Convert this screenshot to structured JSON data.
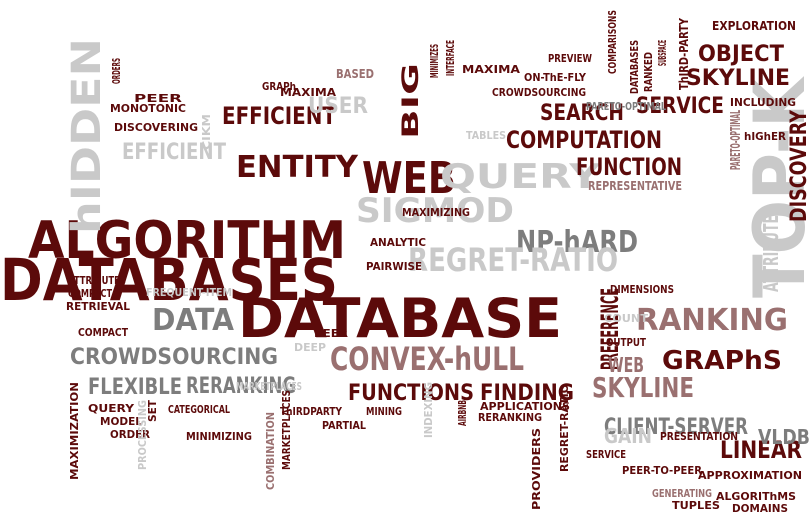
{
  "palette": {
    "maroon": "#5c0a0a",
    "gray": "#7d7d7d",
    "light": "#c9c9c9",
    "rose": "#9a7070"
  },
  "words": [
    {
      "text": "DATABASES",
      "color": "maroon"
    },
    {
      "text": "DATABASE",
      "color": "maroon"
    },
    {
      "text": "ALGORITHM",
      "color": "maroon"
    },
    {
      "text": "TOP-K",
      "color": "light"
    },
    {
      "text": "WEB",
      "color": "maroon"
    },
    {
      "text": "hIDDEN",
      "color": "light"
    },
    {
      "text": "ENTITY",
      "color": "maroon"
    },
    {
      "text": "QUERY",
      "color": "light"
    },
    {
      "text": "SIGMOD",
      "color": "light"
    },
    {
      "text": "NP-hARD",
      "color": "gray"
    },
    {
      "text": "REGRET-RATIO",
      "color": "light"
    },
    {
      "text": "RANKING",
      "color": "rose"
    },
    {
      "text": "CONVEX-hULL",
      "color": "rose"
    },
    {
      "text": "DATA",
      "color": "gray"
    },
    {
      "text": "SKYLINE",
      "color": "rose"
    },
    {
      "text": "GRAPhS",
      "color": "maroon"
    },
    {
      "text": "CROWDSOURCING",
      "color": "gray"
    },
    {
      "text": "COMPUTATION",
      "color": "maroon"
    },
    {
      "text": "FUNCTION",
      "color": "maroon"
    },
    {
      "text": "SEARCH",
      "color": "maroon"
    },
    {
      "text": "OBJECT",
      "color": "maroon"
    },
    {
      "text": "SKYLINE",
      "color": "maroon"
    },
    {
      "text": "SERVICE",
      "color": "maroon"
    },
    {
      "text": "EFFICIENT",
      "color": "maroon"
    },
    {
      "text": "EFFICIENT",
      "color": "light"
    },
    {
      "text": "USER",
      "color": "light"
    },
    {
      "text": "BIG",
      "color": "maroon"
    },
    {
      "text": "DISCOVERY",
      "color": "maroon"
    },
    {
      "text": "ATTRIBUTES",
      "color": "light"
    },
    {
      "text": "PREFERENCE",
      "color": "maroon"
    },
    {
      "text": "FUNCTIONS",
      "color": "maroon"
    },
    {
      "text": "FINDING",
      "color": "maroon"
    },
    {
      "text": "FLEXIBLE",
      "color": "gray"
    },
    {
      "text": "RERANKING",
      "color": "gray"
    },
    {
      "text": "CLIENT-SERVER",
      "color": "gray"
    },
    {
      "text": "LINEAR",
      "color": "maroon"
    },
    {
      "text": "GAIN",
      "color": "light"
    },
    {
      "text": "VLDB",
      "color": "gray"
    },
    {
      "text": "WEB",
      "color": "rose"
    },
    {
      "text": "EXPLORATION",
      "color": "maroon"
    },
    {
      "text": "INCLUDING",
      "color": "maroon"
    },
    {
      "text": "hIGhER",
      "color": "maroon"
    },
    {
      "text": "PARETO-OPTIMAL",
      "color": "rose"
    },
    {
      "text": "PARETO-OPTIMAL",
      "color": "gray"
    },
    {
      "text": "ThIRD-PARTY",
      "color": "maroon"
    },
    {
      "text": "RANKED",
      "color": "maroon"
    },
    {
      "text": "SUBSPACE",
      "color": "maroon"
    },
    {
      "text": "DATABASES",
      "color": "maroon"
    },
    {
      "text": "COMPARISONS",
      "color": "maroon"
    },
    {
      "text": "PREVIEW",
      "color": "maroon"
    },
    {
      "text": "ON-ThE-FLY",
      "color": "maroon"
    },
    {
      "text": "CROWDSOURCING",
      "color": "maroon"
    },
    {
      "text": "MAXIMA",
      "color": "maroon"
    },
    {
      "text": "MAXIMA",
      "color": "maroon"
    },
    {
      "text": "INTERFACE",
      "color": "maroon"
    },
    {
      "text": "MINIMIZES",
      "color": "maroon"
    },
    {
      "text": "BASED",
      "color": "rose"
    },
    {
      "text": "GRAPh",
      "color": "maroon"
    },
    {
      "text": "ORDERS",
      "color": "maroon"
    },
    {
      "text": "PEER",
      "color": "maroon"
    },
    {
      "text": "MONOTONIC",
      "color": "maroon"
    },
    {
      "text": "DISCOVERING",
      "color": "maroon"
    },
    {
      "text": "CIKM",
      "color": "light"
    },
    {
      "text": "TABLES",
      "color": "light"
    },
    {
      "text": "MAXIMIZING",
      "color": "maroon"
    },
    {
      "text": "REPRESENTATIVE",
      "color": "rose"
    },
    {
      "text": "ANALYTIC",
      "color": "maroon"
    },
    {
      "text": "PAIRWISE",
      "color": "maroon"
    },
    {
      "text": "ATTRIBUTES",
      "color": "maroon"
    },
    {
      "text": "COMPACT",
      "color": "maroon"
    },
    {
      "text": "RETRIEVAL",
      "color": "maroon"
    },
    {
      "text": "FREQUENT-ITEM",
      "color": "light"
    },
    {
      "text": "COMPACT",
      "color": "maroon"
    },
    {
      "text": "DIMENSIONS",
      "color": "maroon"
    },
    {
      "text": "COUNT",
      "color": "light"
    },
    {
      "text": "OUTPUT",
      "color": "maroon"
    },
    {
      "text": "PEER",
      "color": "maroon"
    },
    {
      "text": "DEEP",
      "color": "light"
    },
    {
      "text": "MAXIMIZATION",
      "color": "maroon"
    },
    {
      "text": "QUERY",
      "color": "maroon"
    },
    {
      "text": "MODEL",
      "color": "maroon"
    },
    {
      "text": "ORDER",
      "color": "maroon"
    },
    {
      "text": "PROCESSING",
      "color": "light"
    },
    {
      "text": "SET",
      "color": "maroon"
    },
    {
      "text": "CATEGORICAL",
      "color": "maroon"
    },
    {
      "text": "MARKETPLACES",
      "color": "light"
    },
    {
      "text": "MINIMIZING",
      "color": "maroon"
    },
    {
      "text": "COMBINATION",
      "color": "rose"
    },
    {
      "text": "MARKETPLACES",
      "color": "maroon"
    },
    {
      "text": "ThIRDPARTY",
      "color": "maroon"
    },
    {
      "text": "MINING",
      "color": "maroon"
    },
    {
      "text": "PARTIAL",
      "color": "maroon"
    },
    {
      "text": "INDEXING",
      "color": "light"
    },
    {
      "text": "AIRBNB",
      "color": "maroon"
    },
    {
      "text": "APPLICATIONS",
      "color": "maroon"
    },
    {
      "text": "RERANKING",
      "color": "maroon"
    },
    {
      "text": "PROVIDERS",
      "color": "maroon"
    },
    {
      "text": "REGRET-RATIO",
      "color": "maroon"
    },
    {
      "text": "SERVICE",
      "color": "maroon"
    },
    {
      "text": "PRESENTATION",
      "color": "maroon"
    },
    {
      "text": "PEER-TO-PEER",
      "color": "maroon"
    },
    {
      "text": "APPROXIMATION",
      "color": "maroon"
    },
    {
      "text": "GENERATING",
      "color": "rose"
    },
    {
      "text": "ALGORIThMS",
      "color": "maroon"
    },
    {
      "text": "TUPLES",
      "color": "maroon"
    },
    {
      "text": "DOMAINS",
      "color": "maroon"
    }
  ]
}
